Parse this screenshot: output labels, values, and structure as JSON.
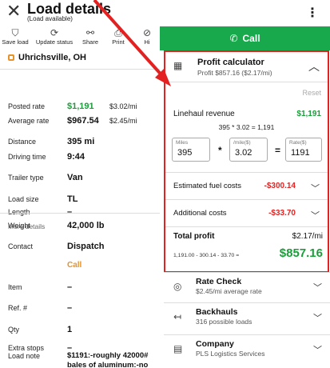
{
  "header": {
    "title": "Load details",
    "subtitle": "(Load available)"
  },
  "toolbar": {
    "items": [
      {
        "label": "Save load",
        "icon": "bookmark-icon"
      },
      {
        "label": "Update status",
        "icon": "refresh-icon"
      },
      {
        "label": "Share",
        "icon": "share-icon"
      },
      {
        "label": "Print",
        "icon": "print-icon"
      },
      {
        "label": "Hi",
        "icon": "hide-icon"
      }
    ]
  },
  "origin": "Uhrichsville, OH",
  "rates": [
    {
      "label": "Posted rate",
      "value": "$1,191",
      "per_mile": "$3.02/mi"
    },
    {
      "label": "Average rate",
      "value": "$967.54",
      "per_mile": "$2.45/mi"
    }
  ],
  "distance": {
    "label": "Distance",
    "value": "395 mi"
  },
  "driving_time": {
    "label": "Driving time",
    "value": "9:44"
  },
  "trailer": {
    "label": "Trailer type",
    "value": "Van"
  },
  "load_size": {
    "label": "Load size",
    "value": "TL"
  },
  "length": {
    "label": "Length",
    "value": "–"
  },
  "weight": {
    "label": "Weight",
    "value": "42,000 lb"
  },
  "more_details": {
    "heading": "More details",
    "contact_label": "Contact",
    "contact_value": "Dispatch",
    "call_link": "Call",
    "item_label": "Item",
    "item_value": "–",
    "ref_label": "Ref. #",
    "ref_value": "–",
    "qty_label": "Qty",
    "qty_value": "1",
    "extra_label": "Extra stops",
    "extra_value": "–",
    "note_label": "Load note",
    "note_line1": "$1191:-roughly 42000#",
    "note_line2": "bales of aluminum:-no"
  },
  "call_button": "Call",
  "profit": {
    "title": "Profit calculator",
    "subtitle": "Profit $857.16 ($2.17/mi)",
    "reset": "Reset",
    "linehaul_label": "Linehaul revenue",
    "linehaul_value": "$1,191",
    "formula": "395 * 3.02 = 1,191",
    "miles_label": "Miles",
    "miles_value": "395",
    "mult_sign": "*",
    "permile_label": "/mile($)",
    "permile_value": "3.02",
    "eq_sign": "=",
    "rate_label": "Rate($)",
    "rate_value": "1191",
    "fuel_label": "Estimated fuel costs",
    "fuel_value": "-$300.14",
    "additional_label": "Additional costs",
    "additional_value": "-$33.70",
    "total_label": "Total profit",
    "total_rate": "$2.17/mi",
    "total_formula": "1,191.00 - 300.14 - 33.70 =",
    "total_value": "$857.16"
  },
  "sections": [
    {
      "title": "Rate Check",
      "subtitle": "$2.45/mi average rate",
      "icon": "location-pin-icon"
    },
    {
      "title": "Backhauls",
      "subtitle": "316 possible loads",
      "icon": "return-arrow-icon"
    },
    {
      "title": "Company",
      "subtitle": "PLS Logistics Services",
      "icon": "building-icon"
    }
  ],
  "colors": {
    "accent_green": "#17a94b",
    "cost_red": "#e42121",
    "origin_orange": "#e8922a",
    "annotation_red": "#e42121"
  }
}
